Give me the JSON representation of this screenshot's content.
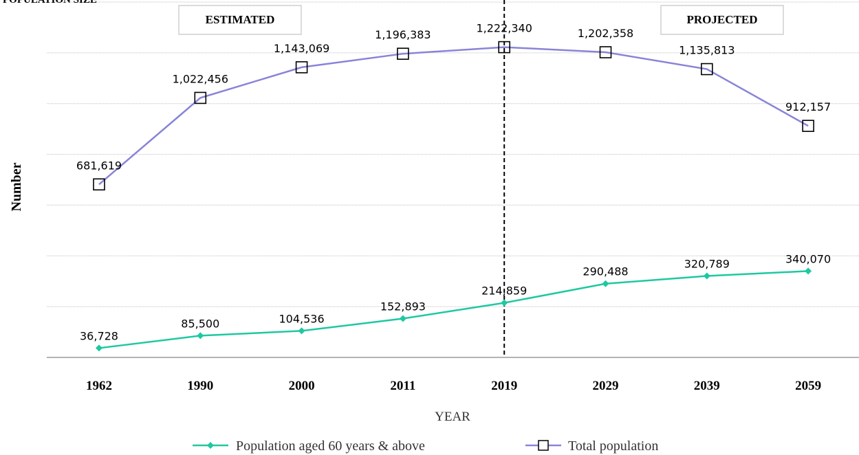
{
  "chart_data": {
    "type": "line",
    "title": "POPULATION SIZE",
    "xlabel": "YEAR",
    "ylabel": "Number",
    "categories": [
      "1962",
      "1990",
      "2000",
      "2011",
      "2019",
      "2029",
      "2039",
      "2059"
    ],
    "ylim": [
      0,
      1400000
    ],
    "grid": true,
    "legend_position": "bottom",
    "series": [
      {
        "name": "Population aged 60 years & above",
        "values": [
          36728,
          85500,
          104536,
          152893,
          214859,
          290488,
          320789,
          340070
        ],
        "value_labels": [
          "36,728",
          "85,500",
          "104,536",
          "152,893",
          "214,859",
          "290,488",
          "320,789",
          "340,070"
        ],
        "color": "#1ec8a0",
        "marker": "diamond"
      },
      {
        "name": "Total population",
        "values": [
          681619,
          1022456,
          1143069,
          1196383,
          1222340,
          1202358,
          1135813,
          912157
        ],
        "value_labels": [
          "681,619",
          "1,022,456",
          "1,143,069",
          "1,196,383",
          "1,222,340",
          "1,202,358",
          "1,135,813",
          "912,157"
        ],
        "color": "#8884d8",
        "marker": "square"
      }
    ],
    "annotations": [
      {
        "text": "ESTIMATED",
        "region": "before"
      },
      {
        "text": "PROJECTED",
        "region": "after"
      }
    ],
    "divider_category": "2019"
  }
}
